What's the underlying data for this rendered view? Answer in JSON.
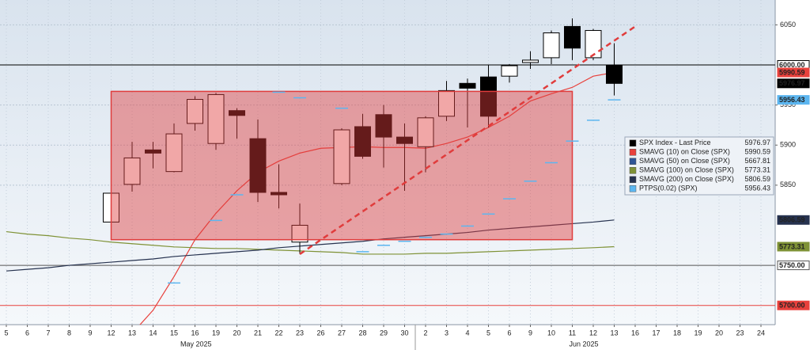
{
  "chart_data": {
    "type": "candlestick",
    "categories": [
      "5",
      "6",
      "7",
      "8",
      "9",
      "12",
      "13",
      "14",
      "15",
      "16",
      "19",
      "20",
      "21",
      "22",
      "23",
      "26",
      "27",
      "28",
      "29",
      "30",
      "2",
      "3",
      "4",
      "5",
      "6",
      "9",
      "10",
      "11",
      "12",
      "13",
      "16",
      "17",
      "18",
      "19",
      "20",
      "23",
      "24"
    ],
    "x_groups": [
      "May 2025",
      "Jun 2025"
    ],
    "ylim": [
      5676,
      6081
    ],
    "yticks": [
      5850,
      5900,
      5950,
      6050
    ],
    "grid": true,
    "candles": {
      "name": "SPX Index - Last Price",
      "color": "#000000",
      "up_color": "#ffffff",
      "open": [
        null,
        null,
        null,
        null,
        null,
        5804,
        5851,
        5894,
        5867,
        5927,
        5902,
        5943,
        5908,
        5841,
        5779,
        null,
        5852,
        5923,
        5938,
        5910,
        5898,
        5936,
        5977,
        5985,
        5986,
        6003,
        6009,
        6048,
        6009,
        6000,
        null,
        null,
        null,
        null,
        null,
        null,
        null
      ],
      "high": [
        null,
        null,
        null,
        null,
        null,
        5842,
        5904,
        5904,
        5927,
        5961,
        5965,
        5946,
        5932,
        5876,
        5827,
        null,
        5921,
        5939,
        5950,
        5927,
        5936,
        5980,
        5983,
        6000,
        6001,
        6017,
        6043,
        6058,
        6045,
        6027,
        null,
        null,
        null,
        null,
        null,
        null,
        null
      ],
      "low": [
        null,
        null,
        null,
        null,
        null,
        5802,
        5842,
        5871,
        5866,
        5918,
        5894,
        5908,
        5829,
        5821,
        5764,
        null,
        5850,
        5883,
        5872,
        5843,
        5866,
        5930,
        5922,
        5922,
        5978,
        5995,
        6001,
        6006,
        6006,
        5962,
        null,
        null,
        null,
        null,
        null,
        null,
        null
      ],
      "close": [
        null,
        null,
        null,
        null,
        null,
        5840,
        5884,
        5890,
        5914,
        5957,
        5963,
        5937,
        5841,
        5838,
        5800,
        null,
        5919,
        5886,
        5910,
        5902,
        5934,
        5968,
        5971,
        5936,
        5999,
        6006,
        6040,
        6021,
        6043,
        5976.97,
        null,
        null,
        null,
        null,
        null,
        null,
        null
      ]
    },
    "series": [
      {
        "name": "SMAVG (10)  on Close (SPX)",
        "color": "#e8413c",
        "style": "line",
        "values": [
          null,
          null,
          null,
          null,
          null,
          null,
          5665,
          5694,
          5736,
          5782,
          5815,
          5843,
          5866,
          5880,
          5890,
          5896,
          5897,
          5898,
          5897,
          5897,
          5896,
          5902,
          5910,
          5922,
          5936,
          5955,
          5964,
          5972,
          5986,
          5990.59,
          null,
          null,
          null,
          null,
          null,
          null,
          null
        ]
      },
      {
        "name": "SMAVG (50)  on Close (SPX)",
        "color": "#2f5597",
        "style": "line",
        "values": [
          null,
          null,
          null,
          null,
          null,
          null,
          null,
          null,
          null,
          null,
          null,
          null,
          null,
          null,
          null,
          null,
          null,
          null,
          null,
          null,
          null,
          null,
          null,
          null,
          null,
          null,
          null,
          null,
          null,
          5667.81,
          null,
          null,
          null,
          null,
          null,
          null,
          null
        ]
      },
      {
        "name": "SMAVG (100)  on Close (SPX)",
        "color": "#7f9236",
        "style": "line",
        "values": [
          5792,
          5789,
          5787,
          5784,
          5782,
          5779,
          5777,
          5775,
          5773,
          5772,
          5771,
          5771,
          5770,
          5769,
          5768,
          5767,
          5766,
          5764,
          5764,
          5764,
          5765,
          5765,
          5766,
          5767,
          5768,
          5769,
          5770,
          5771,
          5772,
          5773.31,
          null,
          null,
          null,
          null,
          null,
          null,
          null
        ]
      },
      {
        "name": "SMAVG (200)  on Close (SPX)",
        "color": "#26324f",
        "style": "line",
        "values": [
          5743,
          5745,
          5747,
          5750,
          5752,
          5754,
          5756,
          5758,
          5761,
          5763,
          5765,
          5767,
          5769,
          5772,
          5774,
          5776,
          5778,
          5780,
          5783,
          5785,
          5787,
          5789,
          5791,
          5794,
          5796,
          5798,
          5800,
          5802,
          5804,
          5806.59,
          null,
          null,
          null,
          null,
          null,
          null,
          null
        ]
      },
      {
        "name": "PTPS(0.02) (SPX)",
        "color": "#5cb6f0",
        "style": "dash",
        "values": [
          null,
          null,
          null,
          null,
          null,
          null,
          null,
          null,
          5728,
          null,
          5806,
          5838,
          null,
          5966,
          5959,
          null,
          5946,
          5767,
          5775,
          5780,
          5785,
          5789,
          5799,
          5814,
          5833,
          5855,
          5878,
          5905,
          5931,
          5956.43,
          null,
          null,
          null,
          null,
          null,
          null,
          null
        ]
      }
    ],
    "levels": [
      {
        "value": 6000,
        "label": "6000.00",
        "color": "#000000"
      },
      {
        "value": 5750,
        "label": "5750.00",
        "color": "#555555"
      },
      {
        "value": 5700,
        "label": "5700.00",
        "color": "#e8413c"
      }
    ],
    "range_box": {
      "x": [
        5,
        27
      ],
      "y": [
        5782,
        5967
      ],
      "color": "#e03c3c"
    },
    "trend_line": {
      "x": [
        14,
        30
      ],
      "y": [
        5764,
        6048
      ],
      "color": "#e03c3c"
    }
  }
}
